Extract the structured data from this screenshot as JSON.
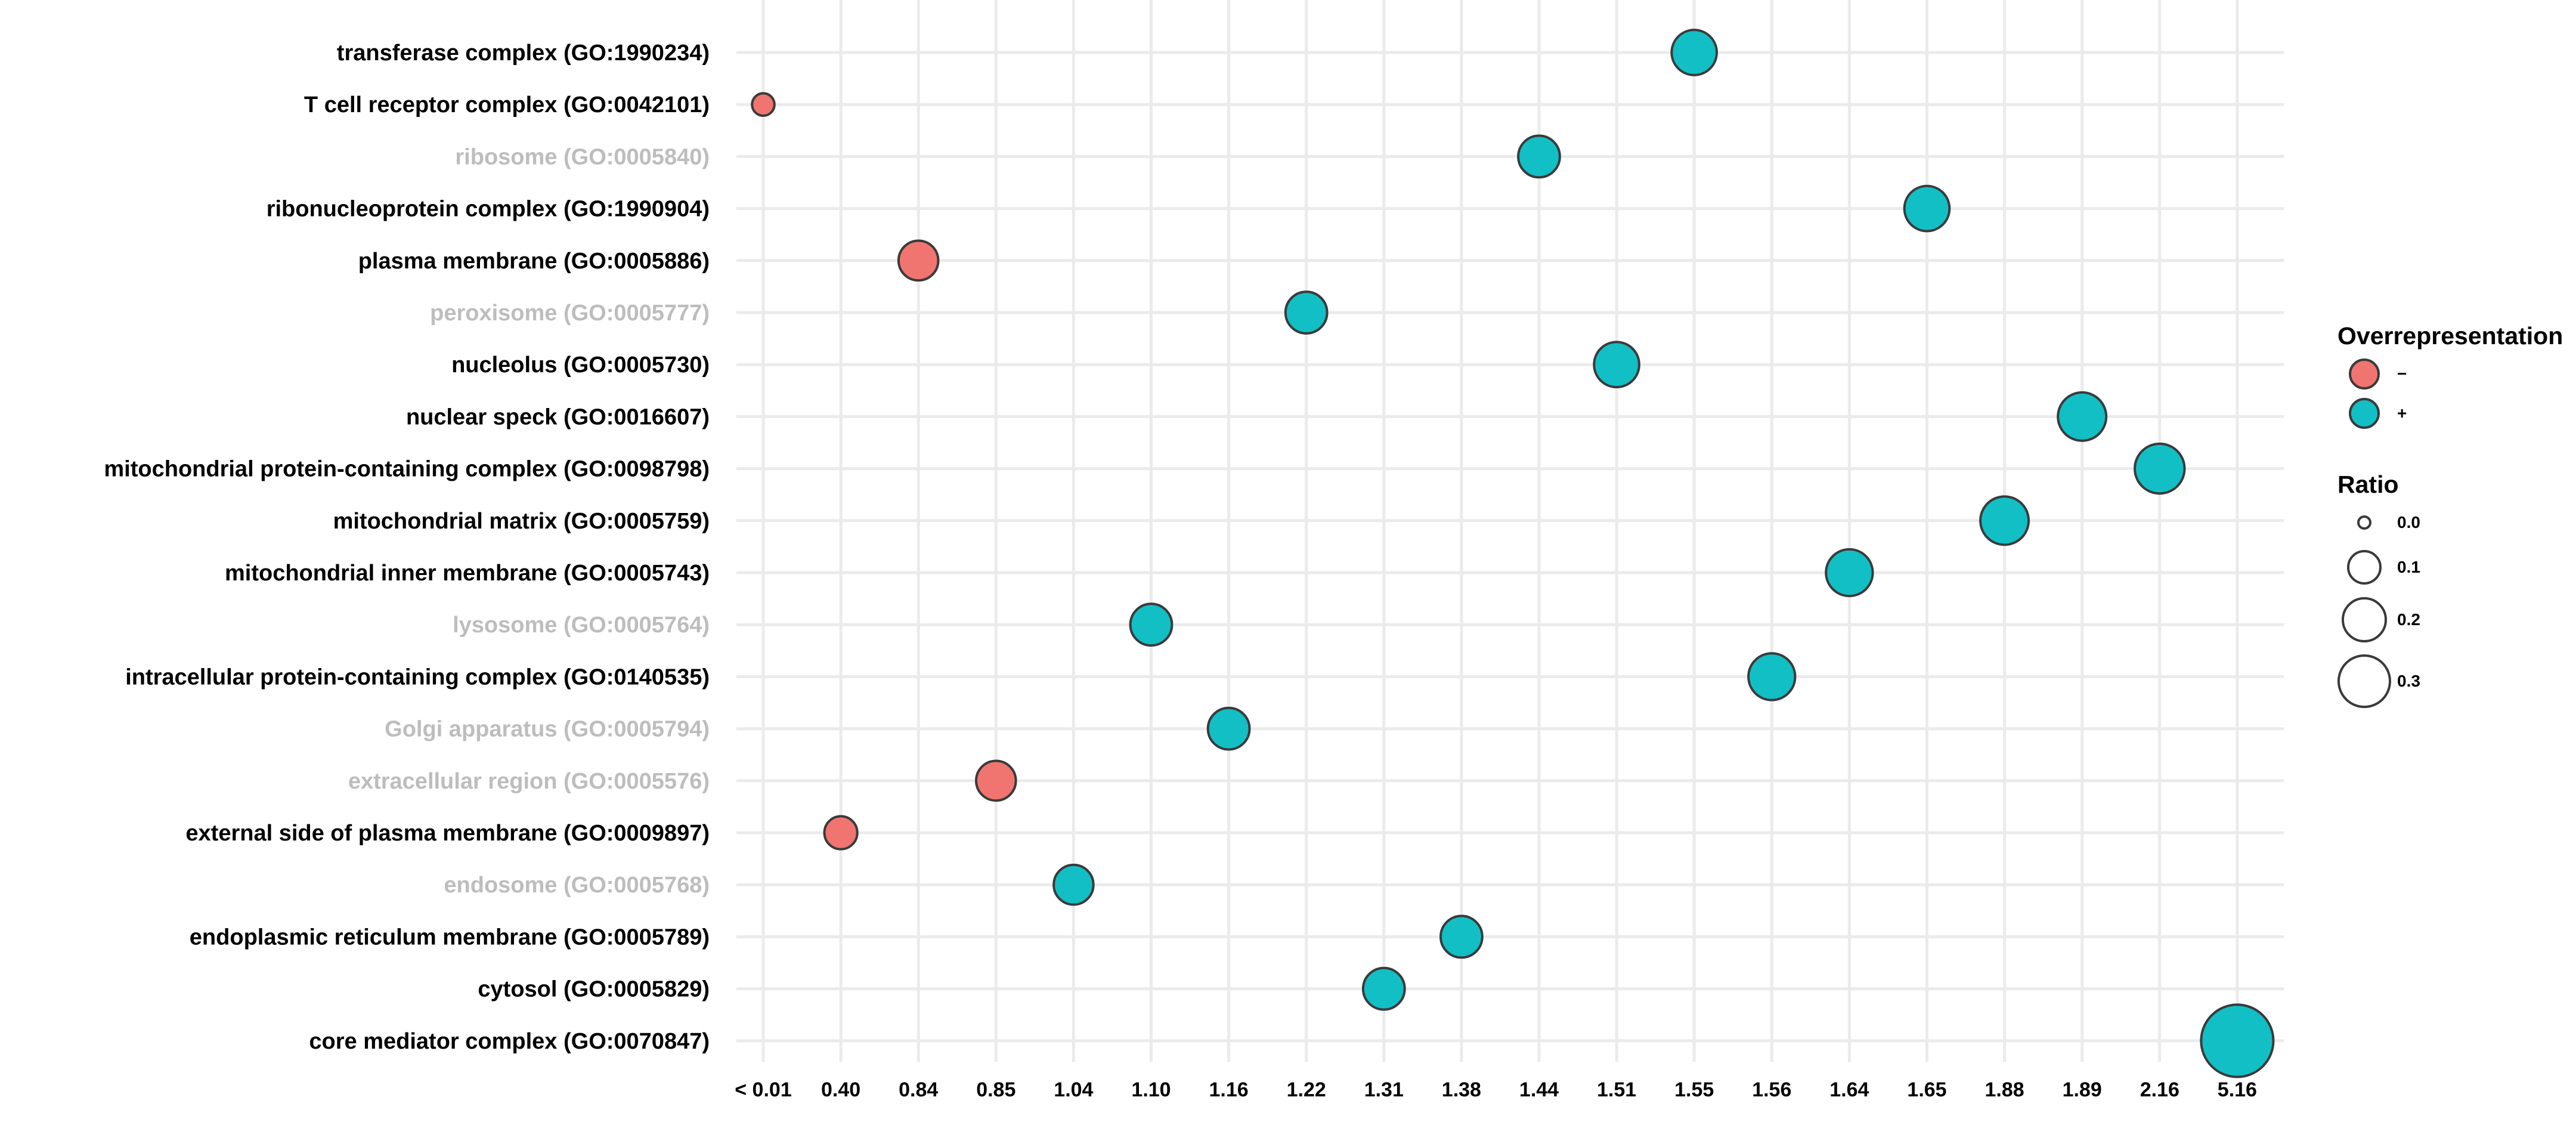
{
  "chart_data": {
    "type": "scatter",
    "title": "",
    "xlabel": "",
    "ylabel": "",
    "x_ticks": [
      "< 0.01",
      "0.40",
      "0.84",
      "0.85",
      "1.04",
      "1.10",
      "1.16",
      "1.22",
      "1.31",
      "1.38",
      "1.44",
      "1.51",
      "1.55",
      "1.56",
      "1.64",
      "1.65",
      "1.88",
      "1.89",
      "2.16",
      "5.16"
    ],
    "categories": [
      "transferase complex (GO:1990234)",
      "T cell receptor complex (GO:0042101)",
      "ribosome (GO:0005840)",
      "ribonucleoprotein complex (GO:1990904)",
      "plasma membrane (GO:0005886)",
      "peroxisome (GO:0005777)",
      "nucleolus (GO:0005730)",
      "nuclear speck (GO:0016607)",
      "mitochondrial protein-containing complex (GO:0098798)",
      "mitochondrial matrix (GO:0005759)",
      "mitochondrial inner membrane (GO:0005743)",
      "lysosome (GO:0005764)",
      "intracellular protein-containing complex (GO:0140535)",
      "Golgi apparatus (GO:0005794)",
      "extracellular region (GO:0005576)",
      "external side of plasma membrane (GO:0009897)",
      "endosome (GO:0005768)",
      "endoplasmic reticulum membrane (GO:0005789)",
      "cytosol (GO:0005829)",
      "core mediator complex (GO:0070847)"
    ],
    "points": [
      {
        "term": "transferase complex (GO:1990234)",
        "x": "1.55",
        "ratio": 0.1,
        "overrepresentation": "+",
        "significant": true
      },
      {
        "term": "T cell receptor complex (GO:0042101)",
        "x": "< 0.01",
        "ratio": 0.01,
        "overrepresentation": "−",
        "significant": true
      },
      {
        "term": "ribosome (GO:0005840)",
        "x": "1.44",
        "ratio": 0.08,
        "overrepresentation": "+",
        "significant": false
      },
      {
        "term": "ribonucleoprotein complex (GO:1990904)",
        "x": "1.65",
        "ratio": 0.1,
        "overrepresentation": "+",
        "significant": true
      },
      {
        "term": "plasma membrane (GO:0005886)",
        "x": "0.84",
        "ratio": 0.07,
        "overrepresentation": "−",
        "significant": true
      },
      {
        "term": "peroxisome (GO:0005777)",
        "x": "1.22",
        "ratio": 0.08,
        "overrepresentation": "+",
        "significant": false
      },
      {
        "term": "nucleolus (GO:0005730)",
        "x": "1.51",
        "ratio": 0.1,
        "overrepresentation": "+",
        "significant": true
      },
      {
        "term": "nuclear speck (GO:0016607)",
        "x": "1.89",
        "ratio": 0.12,
        "overrepresentation": "+",
        "significant": true
      },
      {
        "term": "mitochondrial protein-containing complex (GO:0098798)",
        "x": "2.16",
        "ratio": 0.13,
        "overrepresentation": "+",
        "significant": true
      },
      {
        "term": "mitochondrial matrix (GO:0005759)",
        "x": "1.88",
        "ratio": 0.12,
        "overrepresentation": "+",
        "significant": true
      },
      {
        "term": "mitochondrial inner membrane (GO:0005743)",
        "x": "1.64",
        "ratio": 0.11,
        "overrepresentation": "+",
        "significant": true
      },
      {
        "term": "lysosome (GO:0005764)",
        "x": "1.10",
        "ratio": 0.08,
        "overrepresentation": "+",
        "significant": false
      },
      {
        "term": "intracellular protein-containing complex (GO:0140535)",
        "x": "1.56",
        "ratio": 0.11,
        "overrepresentation": "+",
        "significant": true
      },
      {
        "term": "Golgi apparatus (GO:0005794)",
        "x": "1.16",
        "ratio": 0.08,
        "overrepresentation": "+",
        "significant": false
      },
      {
        "term": "extracellular region (GO:0005576)",
        "x": "0.85",
        "ratio": 0.07,
        "overrepresentation": "−",
        "significant": false
      },
      {
        "term": "external side of plasma membrane (GO:0009897)",
        "x": "0.40",
        "ratio": 0.04,
        "overrepresentation": "−",
        "significant": true
      },
      {
        "term": "endosome (GO:0005768)",
        "x": "1.04",
        "ratio": 0.07,
        "overrepresentation": "+",
        "significant": false
      },
      {
        "term": "endoplasmic reticulum membrane (GO:0005789)",
        "x": "1.38",
        "ratio": 0.08,
        "overrepresentation": "+",
        "significant": true
      },
      {
        "term": "cytosol (GO:0005829)",
        "x": "1.31",
        "ratio": 0.08,
        "overrepresentation": "+",
        "significant": true
      },
      {
        "term": "core mediator complex (GO:0070847)",
        "x": "5.16",
        "ratio": 0.33,
        "overrepresentation": "+",
        "significant": true
      }
    ],
    "colors": {
      "minus": "#F07470",
      "plus": "#12BFC4",
      "outline": "#3a3a3a",
      "grid": "#ebebeb",
      "label_dim": "#bdbdbd",
      "label_strong": "#000000"
    },
    "grid": true,
    "legend_placement": "right"
  },
  "legend": {
    "color_title": "Overrepresentation",
    "items": [
      {
        "label": "−",
        "color": "#F07470"
      },
      {
        "label": "+",
        "color": "#12BFC4"
      }
    ],
    "size_title": "Ratio",
    "size_items": [
      {
        "label": "0.0",
        "ratio": 0.0
      },
      {
        "label": "0.1",
        "ratio": 0.1
      },
      {
        "label": "0.2",
        "ratio": 0.2
      },
      {
        "label": "0.3",
        "ratio": 0.3
      }
    ]
  }
}
